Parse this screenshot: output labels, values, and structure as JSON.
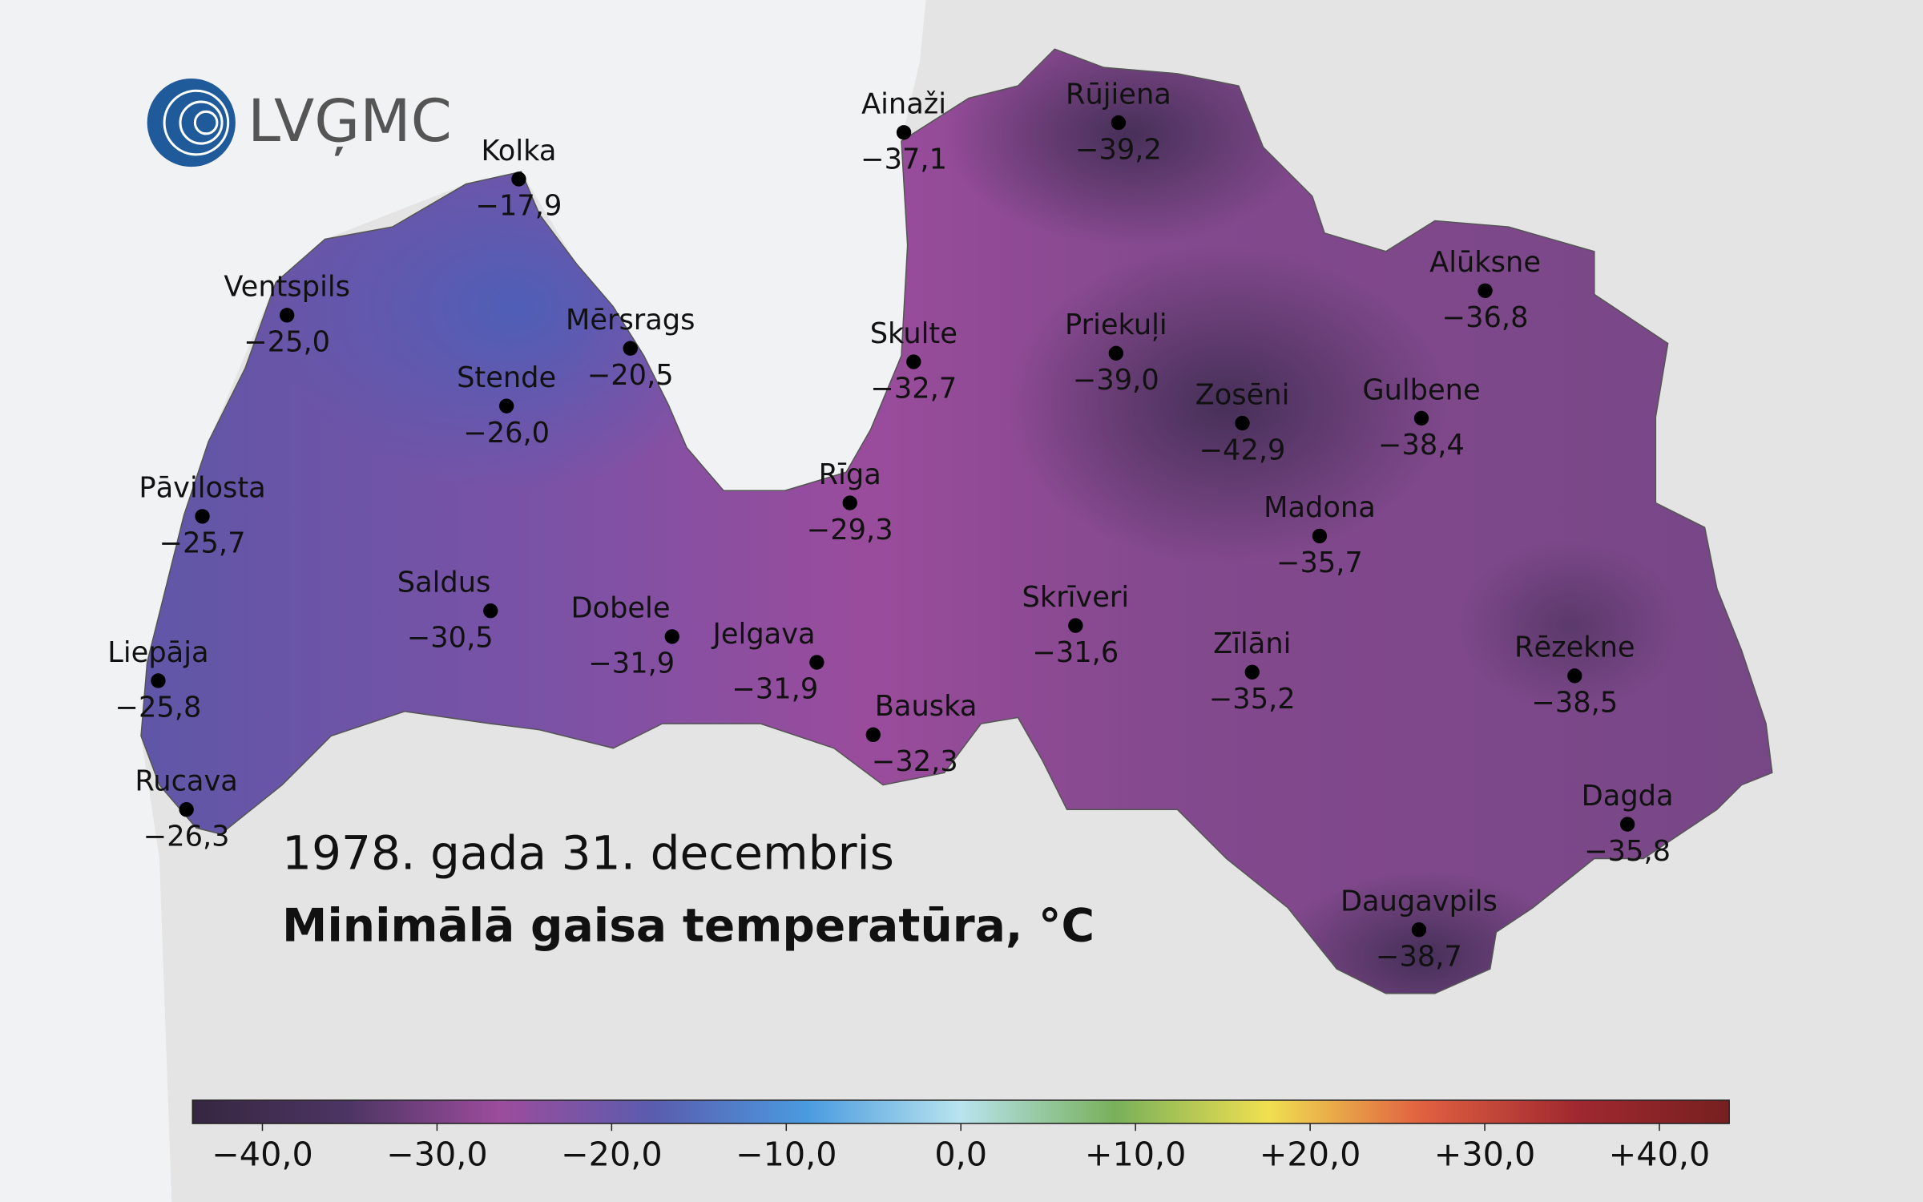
{
  "logo": "LVĢMC",
  "date": "1978. gada 31. decembris",
  "title": "Minimālā gaisa temperatūra, °C",
  "stations": [
    {
      "name": "Kolka",
      "value": {
        "value": -17.9,
        "label": "−17,9"
      }
    },
    {
      "name": "Ainaži",
      "value": {
        "value": -37.1,
        "label": "−37,1"
      }
    },
    {
      "name": "Rūjiena",
      "value": {
        "value": -39.2,
        "label": "−39,2"
      }
    },
    {
      "name": "Ventspils",
      "value": {
        "value": -25.0,
        "label": "−25,0"
      }
    },
    {
      "name": "Mērsrags",
      "value": {
        "value": -20.5,
        "label": "−20,5"
      }
    },
    {
      "name": "Skulte",
      "value": {
        "value": -32.7,
        "label": "−32,7"
      }
    },
    {
      "name": "Priekuļi",
      "value": {
        "value": -39.0,
        "label": "−39,0"
      }
    },
    {
      "name": "Alūksne",
      "value": {
        "value": -36.8,
        "label": "−36,8"
      }
    },
    {
      "name": "Stende",
      "value": {
        "value": -26.0,
        "label": "−26,0"
      }
    },
    {
      "name": "Zosēni",
      "value": {
        "value": -42.9,
        "label": "−42,9"
      }
    },
    {
      "name": "Gulbene",
      "value": {
        "value": -38.4,
        "label": "−38,4"
      }
    },
    {
      "name": "Pāvilosta",
      "value": {
        "value": -25.7,
        "label": "−25,7"
      }
    },
    {
      "name": "Rīga",
      "value": {
        "value": -29.3,
        "label": "−29,3"
      }
    },
    {
      "name": "Madona",
      "value": {
        "value": -35.7,
        "label": "−35,7"
      }
    },
    {
      "name": "Saldus",
      "value": {
        "value": -30.5,
        "label": "−30,5"
      }
    },
    {
      "name": "Dobele",
      "value": {
        "value": -31.9,
        "label": "−31,9"
      }
    },
    {
      "name": "Jelgava",
      "value": {
        "value": -31.9,
        "label": "−31,9"
      }
    },
    {
      "name": "Skrīveri",
      "value": {
        "value": -31.6,
        "label": "−31,6"
      }
    },
    {
      "name": "Zīlāni",
      "value": {
        "value": -35.2,
        "label": "−35,2"
      }
    },
    {
      "name": "Rēzekne",
      "value": {
        "value": -38.5,
        "label": "−38,5"
      }
    },
    {
      "name": "Liepāja",
      "value": {
        "value": -25.8,
        "label": "−25,8"
      }
    },
    {
      "name": "Bauska",
      "value": {
        "value": -32.3,
        "label": "−32,3"
      }
    },
    {
      "name": "Rucava",
      "value": {
        "value": -26.3,
        "label": "−26,3"
      }
    },
    {
      "name": "Dagda",
      "value": {
        "value": -35.8,
        "label": "−35,8"
      }
    },
    {
      "name": "Daugavpils",
      "value": {
        "value": -38.7,
        "label": "−38,7"
      }
    }
  ],
  "colorbar": {
    "range": [
      -44,
      44
    ],
    "colors": [
      "#362640",
      "#4c3563",
      "#9c4c9c",
      "#5a5cae",
      "#4a9be0",
      "#b8e4ee",
      "#78b05a",
      "#f0e050",
      "#e06040",
      "#a02830",
      "#762020"
    ],
    "ticks": [
      {
        "value": -40,
        "label": "−40,0"
      },
      {
        "value": -30,
        "label": "−30,0"
      },
      {
        "value": -20,
        "label": "−20,0"
      },
      {
        "value": -10,
        "label": "−10,0"
      },
      {
        "value": 0,
        "label": "0,0"
      },
      {
        "value": 10,
        "label": "+10,0"
      },
      {
        "value": 20,
        "label": "+20,0"
      },
      {
        "value": 30,
        "label": "+30,0"
      },
      {
        "value": 40,
        "label": "+40,0"
      }
    ]
  }
}
